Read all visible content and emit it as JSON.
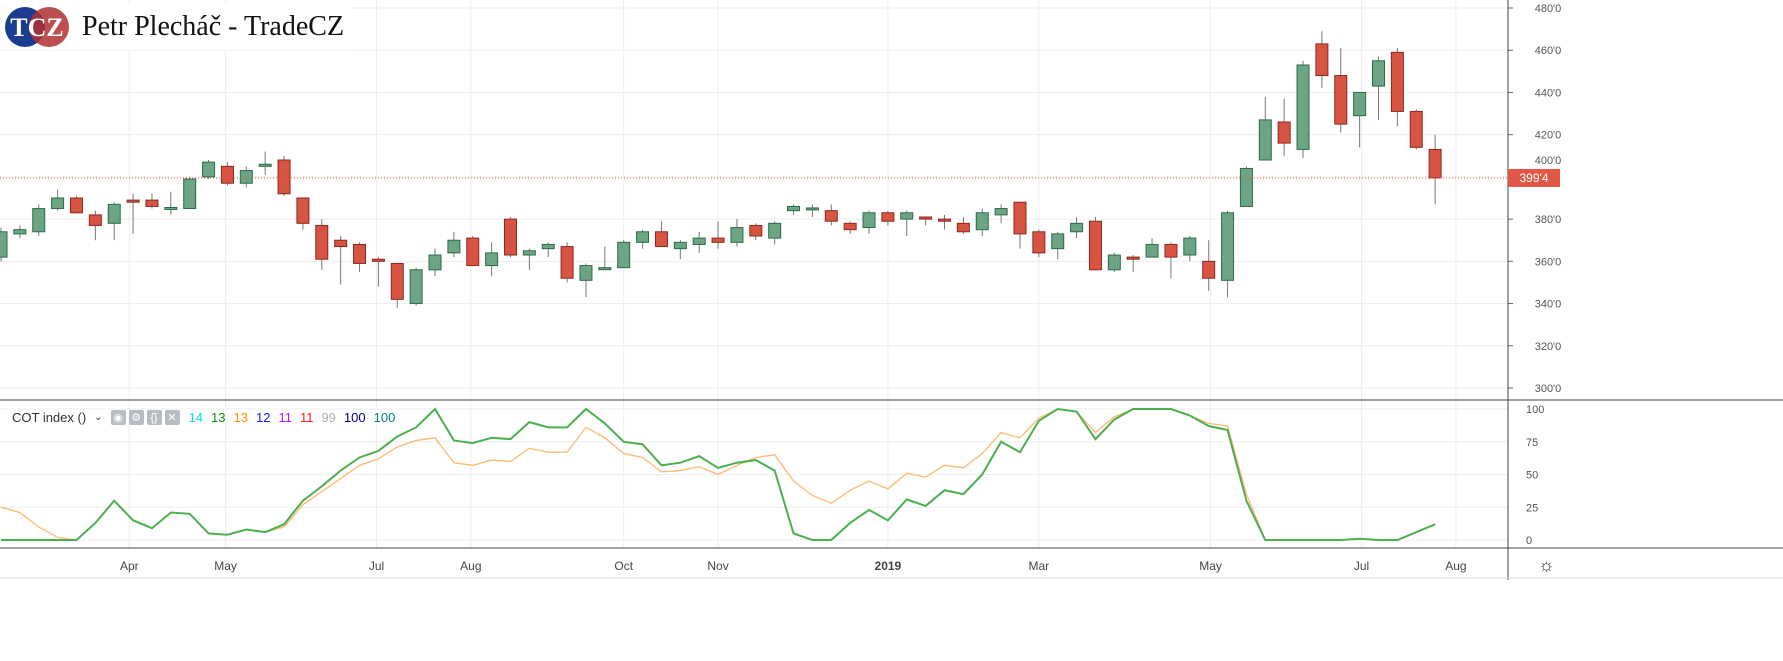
{
  "header": {
    "logo_text": "TCZ",
    "brand": "Petr Plecháč - TradeCZ"
  },
  "indicator": {
    "name": "COT index ()",
    "values": [
      {
        "v": "14",
        "color": "#00e5e5"
      },
      {
        "v": "13",
        "color": "#0a8a0a"
      },
      {
        "v": "13",
        "color": "#ff8c00"
      },
      {
        "v": "12",
        "color": "#1a1aff"
      },
      {
        "v": "11",
        "color": "#b01aff"
      },
      {
        "v": "11",
        "color": "#ff1a1a"
      },
      {
        "v": "99",
        "color": "#b0b0b0"
      },
      {
        "v": "100",
        "color": "#000080"
      },
      {
        "v": "100",
        "color": "#008080"
      }
    ]
  },
  "colors": {
    "up": "#6ba583",
    "down": "#d75442",
    "green_line": "#4caf50",
    "orange_line": "#ffb870",
    "last_price": "#e05745"
  },
  "chart_data": [
    {
      "type": "candlestick",
      "title": "",
      "ylim": [
        300,
        480
      ],
      "yticks": [
        "300'0",
        "320'0",
        "340'0",
        "360'0",
        "380'0",
        "400'0",
        "420'0",
        "440'0",
        "460'0",
        "480'0"
      ],
      "last_price_label": "399'4",
      "last_price": 399.5,
      "xticks": [
        {
          "label": "Apr",
          "i": 6.8
        },
        {
          "label": "May",
          "i": 11.9
        },
        {
          "label": "Jul",
          "i": 19.9
        },
        {
          "label": "Aug",
          "i": 24.9
        },
        {
          "label": "Oct",
          "i": 33
        },
        {
          "label": "Nov",
          "i": 38
        },
        {
          "label": "2019",
          "i": 47,
          "bold": true
        },
        {
          "label": "Mar",
          "i": 55
        },
        {
          "label": "May",
          "i": 64.1
        },
        {
          "label": "Jul",
          "i": 72.1
        },
        {
          "label": "Aug",
          "i": 77.1
        }
      ],
      "ohlc": [
        [
          362,
          376,
          360,
          374
        ],
        [
          373,
          377,
          371,
          375
        ],
        [
          374,
          387,
          372,
          385
        ],
        [
          385,
          394,
          384,
          390
        ],
        [
          390,
          391,
          383,
          383
        ],
        [
          382,
          384,
          370,
          377
        ],
        [
          378,
          388,
          370,
          387
        ],
        [
          389,
          392,
          373,
          388
        ],
        [
          389,
          392,
          385,
          386
        ],
        [
          385,
          393,
          382,
          385.5
        ],
        [
          385,
          400,
          385,
          399
        ],
        [
          400,
          408,
          399,
          407
        ],
        [
          405,
          407,
          396,
          397
        ],
        [
          397,
          405,
          395,
          403
        ],
        [
          405,
          412,
          401,
          406
        ],
        [
          408,
          410,
          391,
          392
        ],
        [
          390,
          390,
          375,
          378
        ],
        [
          377,
          380,
          356,
          361
        ],
        [
          370,
          372,
          349,
          367
        ],
        [
          368,
          369,
          355,
          359
        ],
        [
          361,
          362,
          348,
          360
        ],
        [
          359,
          359,
          338,
          342
        ],
        [
          340,
          357,
          339,
          356
        ],
        [
          356,
          366,
          353,
          363
        ],
        [
          364,
          374,
          362,
          370
        ],
        [
          371,
          372,
          358,
          358
        ],
        [
          358,
          369,
          353,
          364
        ],
        [
          380,
          381,
          362,
          363
        ],
        [
          363,
          366,
          356,
          365
        ],
        [
          366,
          369,
          362,
          368
        ],
        [
          367,
          369,
          350,
          352
        ],
        [
          351,
          359,
          343,
          358
        ],
        [
          357,
          367,
          356,
          357
        ],
        [
          357,
          370,
          357,
          369
        ],
        [
          369,
          375,
          366,
          374
        ],
        [
          374,
          379,
          367,
          367
        ],
        [
          366,
          370,
          361,
          369
        ],
        [
          368,
          374,
          364,
          371
        ],
        [
          371,
          379,
          366,
          369
        ],
        [
          369,
          380,
          367,
          376
        ],
        [
          377,
          378,
          370,
          372
        ],
        [
          371,
          379,
          368,
          378
        ],
        [
          384,
          387,
          382,
          386
        ],
        [
          385,
          387,
          381,
          385.3
        ],
        [
          384,
          387,
          377,
          379
        ],
        [
          378,
          379,
          373,
          375
        ],
        [
          376,
          384,
          373,
          383
        ],
        [
          383,
          384,
          377,
          379
        ],
        [
          380,
          384,
          372,
          383
        ],
        [
          381,
          381,
          377,
          380
        ],
        [
          380,
          382,
          375,
          379
        ],
        [
          378,
          381,
          373,
          374
        ],
        [
          375,
          385,
          372,
          383
        ],
        [
          382,
          387,
          378,
          385
        ],
        [
          388,
          388,
          366,
          373
        ],
        [
          374,
          375,
          362,
          364
        ],
        [
          366,
          374,
          361,
          373
        ],
        [
          374,
          381,
          371,
          378
        ],
        [
          379,
          381,
          356,
          356
        ],
        [
          356,
          364,
          355,
          363
        ],
        [
          362,
          363,
          355,
          361
        ],
        [
          362,
          371,
          362,
          368
        ],
        [
          368,
          369,
          352,
          362
        ],
        [
          363,
          372,
          360,
          371
        ],
        [
          360,
          370,
          346,
          352
        ],
        [
          351,
          384,
          343,
          383
        ],
        [
          386,
          405,
          386,
          404
        ],
        [
          408,
          438,
          408,
          427
        ],
        [
          426,
          437,
          410,
          416
        ],
        [
          413,
          455,
          409,
          453
        ],
        [
          463,
          469,
          442,
          448
        ],
        [
          448,
          461,
          421,
          425
        ],
        [
          429,
          440,
          414,
          440
        ],
        [
          443,
          457,
          427,
          455
        ],
        [
          459,
          461,
          424,
          431
        ],
        [
          431,
          432,
          413,
          414
        ],
        [
          413,
          420,
          387,
          399.5
        ]
      ]
    },
    {
      "type": "line",
      "title": "COT index ()",
      "ylim": [
        0,
        100
      ],
      "yticks": [
        "0",
        "25",
        "50",
        "75",
        "100"
      ],
      "series": [
        {
          "name": "COT index A",
          "color": "#ffb870",
          "values": [
            25,
            21,
            10,
            2,
            0,
            13,
            30,
            15,
            9,
            21,
            20,
            5,
            4,
            8,
            6,
            10,
            27,
            37,
            47,
            57,
            62,
            71,
            76,
            78,
            59,
            57,
            61,
            60,
            70,
            67,
            67,
            86,
            78,
            66,
            63,
            52,
            53,
            56,
            50,
            57,
            63,
            65,
            45,
            34,
            28,
            38,
            45,
            39,
            51,
            48,
            57,
            55,
            66,
            82,
            78,
            93,
            100,
            98,
            82,
            94,
            100,
            100,
            100,
            95,
            89,
            87,
            35,
            0,
            0,
            0,
            0,
            0,
            1,
            0,
            0,
            6,
            12
          ]
        },
        {
          "name": "COT index B",
          "color": "#4caf50",
          "values": [
            0,
            0,
            0,
            0,
            0,
            13,
            30,
            15,
            9,
            21,
            20,
            5,
            4,
            8,
            6,
            12,
            30,
            41,
            53,
            63,
            68,
            79,
            86,
            100,
            76,
            74,
            78,
            77,
            90,
            86,
            86,
            100,
            89,
            75,
            73,
            57,
            59,
            64,
            55,
            59,
            61,
            53,
            5,
            0,
            0,
            13,
            23,
            15,
            31,
            26,
            38,
            35,
            50,
            75,
            67,
            91,
            100,
            98,
            77,
            92,
            100,
            100,
            100,
            95,
            87,
            84,
            30,
            0,
            0,
            0,
            0,
            0,
            1,
            0,
            0,
            6,
            12
          ]
        }
      ]
    }
  ]
}
